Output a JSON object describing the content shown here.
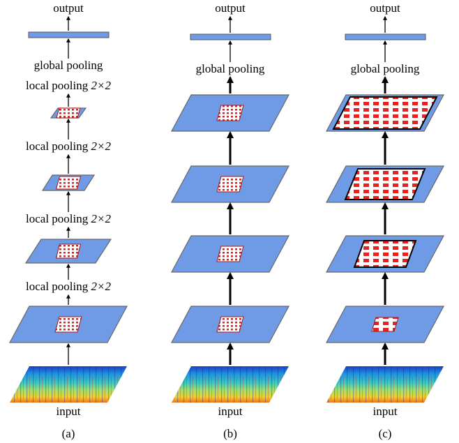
{
  "columns": [
    {
      "caption": "(a)",
      "output": "output",
      "global_pooling": "global pooling",
      "input": "input",
      "local_pooling": [
        {
          "text": "local pooling",
          "factor": "2×2"
        },
        {
          "text": "local pooling",
          "factor": "2×2"
        },
        {
          "text": "local pooling",
          "factor": "2×2"
        },
        {
          "text": "local pooling",
          "factor": "2×2"
        }
      ]
    },
    {
      "caption": "(b)",
      "output": "output",
      "global_pooling": "global pooling",
      "input": "input"
    },
    {
      "caption": "(c)",
      "output": "output",
      "global_pooling": "global pooling",
      "input": "input"
    }
  ]
}
